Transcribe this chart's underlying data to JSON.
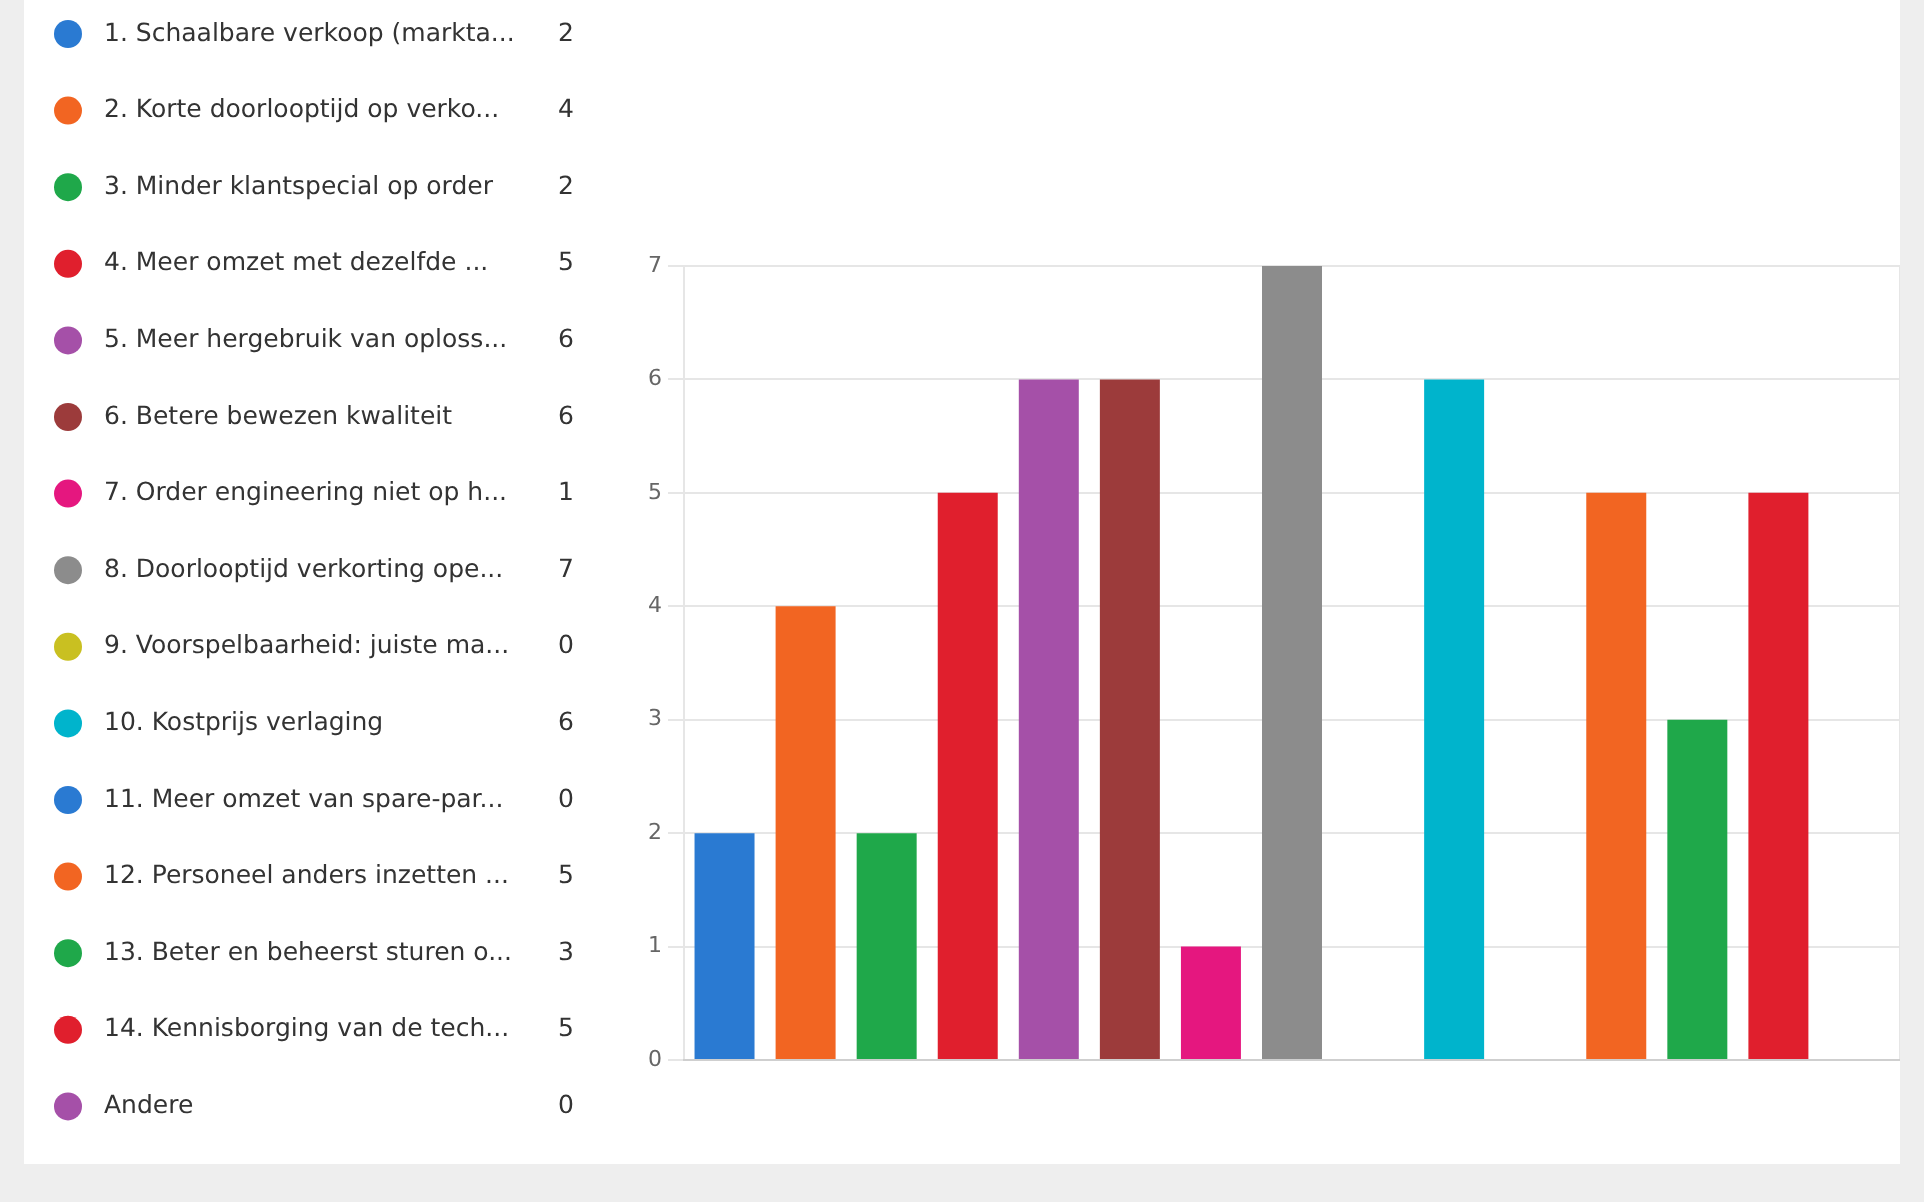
{
  "chart_data": {
    "type": "bar",
    "categories": [
      null
    ],
    "series": [
      {
        "name": "1. Schaalbare verkoop (markta...",
        "color": "#2a7ad2",
        "values": [
          2
        ]
      },
      {
        "name": "2. Korte doorlooptijd op verko...",
        "color": "#f26522",
        "values": [
          4
        ]
      },
      {
        "name": "3. Minder klantspecial op order",
        "color": "#1fa84a",
        "values": [
          2
        ]
      },
      {
        "name": "4. Meer omzet met dezelfde ...",
        "color": "#e01f2d",
        "values": [
          5
        ]
      },
      {
        "name": "5. Meer hergebruik van oploss...",
        "color": "#a550a8",
        "values": [
          6
        ]
      },
      {
        "name": "6. Betere bewezen kwaliteit",
        "color": "#9c3b3b",
        "values": [
          6
        ]
      },
      {
        "name": "7. Order engineering niet op h...",
        "color": "#e5177f",
        "values": [
          1
        ]
      },
      {
        "name": "8. Doorlooptijd verkorting ope...",
        "color": "#8c8c8c",
        "values": [
          7
        ]
      },
      {
        "name": "9. Voorspelbaarheid: juiste ma...",
        "color": "#c9c021",
        "values": [
          0
        ]
      },
      {
        "name": "10. Kostprijs verlaging",
        "color": "#00b4cc",
        "values": [
          6
        ]
      },
      {
        "name": "11. Meer omzet van spare-par...",
        "color": "#2a7ad2",
        "values": [
          0
        ]
      },
      {
        "name": "12. Personeel anders inzetten ...",
        "color": "#f26522",
        "values": [
          5
        ]
      },
      {
        "name": "13. Beter en beheerst sturen o...",
        "color": "#1fa84a",
        "values": [
          3
        ]
      },
      {
        "name": "14. Kennisborging van de tech...",
        "color": "#e01f2d",
        "values": [
          5
        ]
      },
      {
        "name": "Andere",
        "color": "#a550a8",
        "values": [
          0
        ]
      }
    ],
    "ylim": [
      0,
      7
    ],
    "yticks": [
      0,
      1,
      2,
      3,
      4,
      5,
      6,
      7
    ],
    "grid": true,
    "legend": "left",
    "tick_labels": "y",
    "annotations": [
      "2",
      "4",
      "2",
      "5",
      "6",
      "6",
      "1",
      "7",
      "0",
      "6",
      "0",
      "5",
      "3",
      "5",
      "0"
    ]
  }
}
